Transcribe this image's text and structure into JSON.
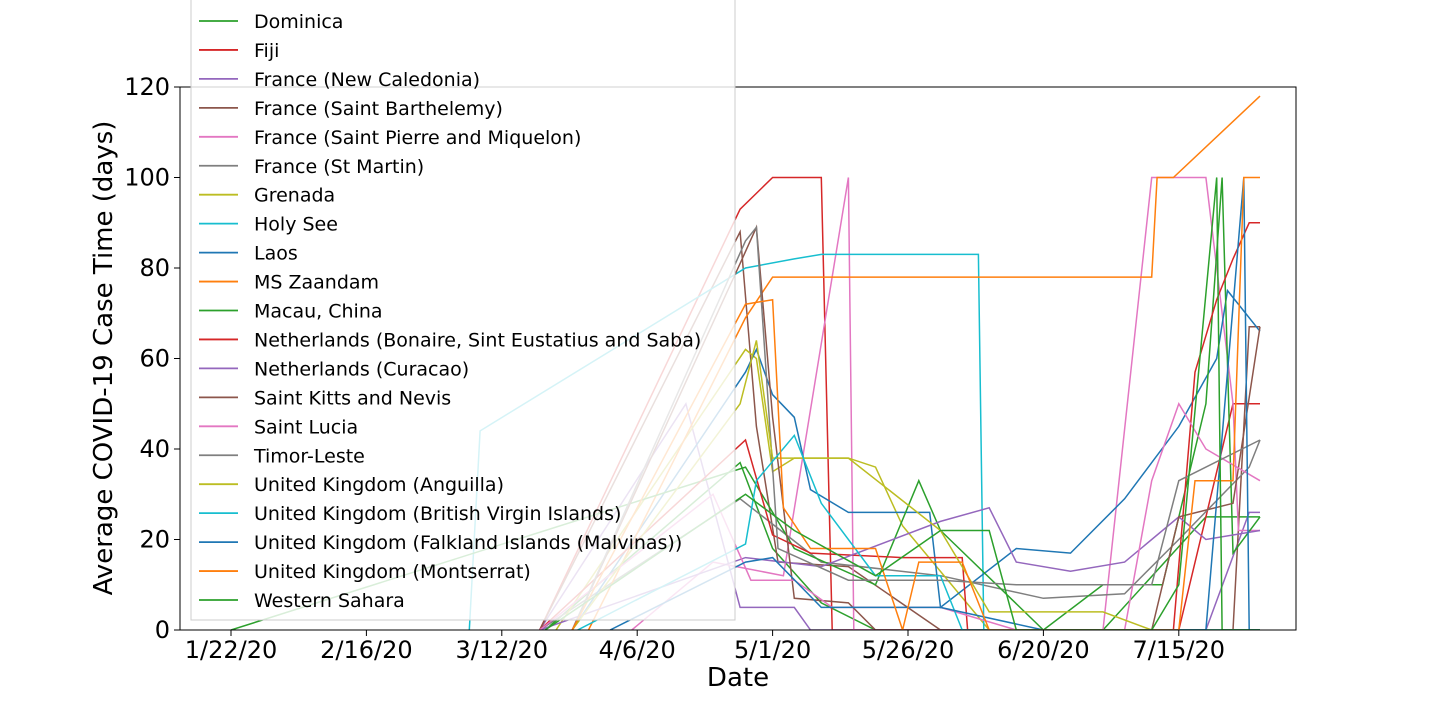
{
  "chart_data": {
    "type": "line",
    "xlabel": "Date",
    "ylabel": "Average COVID-19 Case Time (days)",
    "x_tick_labels": [
      "1/22/20",
      "2/16/20",
      "3/12/20",
      "4/6/20",
      "5/1/20",
      "5/26/20",
      "6/20/20",
      "7/15/20"
    ],
    "x_range": [
      "1/22/20",
      "7/30/20"
    ],
    "ylim": [
      0,
      120
    ],
    "y_ticks": [
      0,
      20,
      40,
      60,
      80,
      100,
      120
    ],
    "grid": false,
    "legend_placement": "upper-left (overlapping plot, partially cut off at top)",
    "series": [
      {
        "name": "Dominica",
        "color": "#2ca02c",
        "points": [
          [
            "3/20/20",
            0
          ],
          [
            "4/25/20",
            37
          ],
          [
            "5/1/20",
            18
          ],
          [
            "5/10/20",
            6
          ],
          [
            "5/20/20",
            0
          ],
          [
            "6/10/20",
            0
          ],
          [
            "7/1/20",
            0
          ],
          [
            "7/20/20",
            25
          ],
          [
            "7/30/20",
            25
          ]
        ]
      },
      {
        "name": "Fiji",
        "color": "#d62728",
        "points": [
          [
            "3/19/20",
            0
          ],
          [
            "4/25/20",
            93
          ],
          [
            "5/1/20",
            100
          ],
          [
            "5/10/20",
            100
          ],
          [
            "5/12/20",
            0
          ],
          [
            "6/1/20",
            0
          ],
          [
            "7/15/20",
            0
          ],
          [
            "7/25/20",
            50
          ],
          [
            "7/30/20",
            50
          ]
        ]
      },
      {
        "name": "France (New Caledonia)",
        "color": "#9467bd",
        "points": [
          [
            "3/19/20",
            0
          ],
          [
            "4/15/20",
            50
          ],
          [
            "4/25/20",
            5
          ],
          [
            "5/5/20",
            5
          ],
          [
            "5/8/20",
            0
          ],
          [
            "7/20/20",
            0
          ],
          [
            "7/28/20",
            26
          ],
          [
            "7/30/20",
            26
          ]
        ]
      },
      {
        "name": "France (Saint Barthelemy)",
        "color": "#8c564b",
        "points": [
          [
            "3/19/20",
            0
          ],
          [
            "4/25/20",
            88
          ],
          [
            "4/28/20",
            45
          ],
          [
            "5/2/20",
            15
          ],
          [
            "5/15/20",
            14
          ],
          [
            "6/1/20",
            0
          ],
          [
            "7/25/20",
            0
          ],
          [
            "7/28/20",
            67
          ],
          [
            "7/30/20",
            67
          ]
        ]
      },
      {
        "name": "France (Saint Pierre and Miquelon)",
        "color": "#e377c2",
        "points": [
          [
            "4/5/20",
            0
          ],
          [
            "4/20/20",
            15
          ],
          [
            "5/3/20",
            12
          ],
          [
            "5/15/20",
            100
          ],
          [
            "5/16/20",
            0
          ],
          [
            "7/1/20",
            0
          ],
          [
            "7/10/20",
            100
          ],
          [
            "7/20/20",
            100
          ],
          [
            "7/25/20",
            50
          ],
          [
            "7/26/20",
            22
          ],
          [
            "7/30/20",
            22
          ]
        ]
      },
      {
        "name": "France (St Martin)",
        "color": "#7f7f7f",
        "points": [
          [
            "3/19/20",
            0
          ],
          [
            "4/25/20",
            29
          ],
          [
            "5/10/20",
            15
          ],
          [
            "6/1/20",
            12
          ],
          [
            "6/20/20",
            7
          ],
          [
            "7/5/20",
            8
          ],
          [
            "7/15/20",
            20
          ],
          [
            "7/28/20",
            36
          ],
          [
            "7/30/20",
            42
          ]
        ]
      },
      {
        "name": "Grenada",
        "color": "#bcbd22",
        "points": [
          [
            "3/22/20",
            0
          ],
          [
            "4/26/20",
            62
          ],
          [
            "4/28/20",
            60
          ],
          [
            "5/1/20",
            35
          ],
          [
            "5/5/20",
            38
          ],
          [
            "5/15/20",
            38
          ],
          [
            "5/20/20",
            36
          ],
          [
            "5/25/20",
            23
          ],
          [
            "6/10/20",
            0
          ],
          [
            "7/30/20",
            0
          ]
        ]
      },
      {
        "name": "Holy See",
        "color": "#17becf",
        "points": [
          [
            "3/6/20",
            0
          ],
          [
            "3/8/20",
            44
          ],
          [
            "4/26/20",
            80
          ],
          [
            "5/5/20",
            82
          ],
          [
            "5/10/20",
            83
          ],
          [
            "6/8/20",
            83
          ],
          [
            "6/9/20",
            0
          ],
          [
            "7/30/20",
            0
          ]
        ]
      },
      {
        "name": "Laos",
        "color": "#1f77b4",
        "points": [
          [
            "3/25/20",
            0
          ],
          [
            "4/26/20",
            57
          ],
          [
            "4/28/20",
            62
          ],
          [
            "5/1/20",
            52
          ],
          [
            "5/5/20",
            47
          ],
          [
            "5/8/20",
            31
          ],
          [
            "5/15/20",
            26
          ],
          [
            "5/30/20",
            26
          ],
          [
            "6/1/20",
            5
          ],
          [
            "6/15/20",
            18
          ],
          [
            "6/25/20",
            17
          ],
          [
            "7/5/20",
            29
          ],
          [
            "7/15/20",
            45
          ],
          [
            "7/22/20",
            60
          ],
          [
            "7/24/20",
            75
          ],
          [
            "7/30/20",
            66
          ]
        ]
      },
      {
        "name": "MS Zaandam",
        "color": "#ff7f0e",
        "points": [
          [
            "3/28/20",
            0
          ],
          [
            "4/26/20",
            69
          ],
          [
            "5/1/20",
            78
          ],
          [
            "6/15/20",
            78
          ],
          [
            "7/10/20",
            78
          ],
          [
            "7/11/20",
            100
          ],
          [
            "7/14/20",
            100
          ],
          [
            "7/30/20",
            118
          ]
        ]
      },
      {
        "name": "Macau, China",
        "color": "#2ca02c",
        "points": [
          [
            "1/22/20",
            0
          ],
          [
            "4/26/20",
            36
          ],
          [
            "5/5/20",
            18
          ],
          [
            "5/20/20",
            10
          ],
          [
            "5/28/20",
            33
          ],
          [
            "6/1/20",
            22
          ],
          [
            "6/20/20",
            0
          ],
          [
            "7/1/20",
            10
          ],
          [
            "7/12/20",
            10
          ],
          [
            "7/20/20",
            50
          ],
          [
            "7/23/20",
            100
          ],
          [
            "7/25/20",
            17
          ],
          [
            "7/30/20",
            25
          ]
        ]
      },
      {
        "name": "Netherlands (Bonaire, Sint Eustatius and Saba)",
        "color": "#d62728",
        "points": [
          [
            "3/19/20",
            0
          ],
          [
            "4/26/20",
            42
          ],
          [
            "5/1/20",
            21
          ],
          [
            "5/8/20",
            17
          ],
          [
            "5/25/20",
            16
          ],
          [
            "6/5/20",
            16
          ],
          [
            "6/6/20",
            0
          ],
          [
            "7/14/20",
            0
          ],
          [
            "7/18/20",
            57
          ],
          [
            "7/22/20",
            73
          ],
          [
            "7/25/20",
            82
          ],
          [
            "7/28/20",
            90
          ],
          [
            "7/30/20",
            90
          ]
        ]
      },
      {
        "name": "Netherlands (Curacao)",
        "color": "#9467bd",
        "points": [
          [
            "3/19/20",
            0
          ],
          [
            "4/26/20",
            16
          ],
          [
            "5/10/20",
            14
          ],
          [
            "6/1/20",
            24
          ],
          [
            "6/10/20",
            27
          ],
          [
            "6/15/20",
            15
          ],
          [
            "6/25/20",
            13
          ],
          [
            "7/5/20",
            15
          ],
          [
            "7/15/20",
            25
          ],
          [
            "7/20/20",
            20
          ],
          [
            "7/30/20",
            22
          ]
        ]
      },
      {
        "name": "Saint Kitts and Nevis",
        "color": "#8c564b",
        "points": [
          [
            "3/25/20",
            0
          ],
          [
            "4/25/20",
            81
          ],
          [
            "4/28/20",
            89
          ],
          [
            "5/1/20",
            47
          ],
          [
            "5/5/20",
            7
          ],
          [
            "5/15/20",
            6
          ],
          [
            "5/20/20",
            0
          ],
          [
            "7/10/20",
            0
          ],
          [
            "7/15/20",
            25
          ],
          [
            "7/25/20",
            28
          ],
          [
            "7/30/20",
            67
          ]
        ]
      },
      {
        "name": "Saint Lucia",
        "color": "#e377c2",
        "points": [
          [
            "3/19/20",
            0
          ],
          [
            "4/20/20",
            30
          ],
          [
            "4/27/20",
            11
          ],
          [
            "5/5/20",
            11
          ],
          [
            "5/12/20",
            5
          ],
          [
            "6/1/20",
            5
          ],
          [
            "6/15/20",
            0
          ],
          [
            "7/5/20",
            0
          ],
          [
            "7/10/20",
            33
          ],
          [
            "7/15/20",
            50
          ],
          [
            "7/20/20",
            40
          ],
          [
            "7/30/20",
            33
          ]
        ]
      },
      {
        "name": "Timor-Leste",
        "color": "#7f7f7f",
        "points": [
          [
            "3/25/20",
            0
          ],
          [
            "4/26/20",
            86
          ],
          [
            "4/28/20",
            89
          ],
          [
            "5/2/20",
            18
          ],
          [
            "5/15/20",
            11
          ],
          [
            "6/1/20",
            11
          ],
          [
            "6/15/20",
            10
          ],
          [
            "7/10/20",
            10
          ],
          [
            "7/15/20",
            33
          ],
          [
            "7/30/20",
            42
          ]
        ]
      },
      {
        "name": "United Kingdom (Anguilla)",
        "color": "#bcbd22",
        "points": [
          [
            "3/25/20",
            0
          ],
          [
            "4/25/20",
            50
          ],
          [
            "4/28/20",
            64
          ],
          [
            "5/1/20",
            38
          ],
          [
            "5/15/20",
            38
          ],
          [
            "6/1/20",
            22
          ],
          [
            "6/10/20",
            4
          ],
          [
            "7/1/20",
            4
          ],
          [
            "7/10/20",
            0
          ],
          [
            "7/30/20",
            0
          ]
        ]
      },
      {
        "name": "United Kingdom (British Virgin Islands)",
        "color": "#17becf",
        "points": [
          [
            "3/26/20",
            0
          ],
          [
            "4/26/20",
            19
          ],
          [
            "4/28/20",
            33
          ],
          [
            "5/5/20",
            43
          ],
          [
            "5/10/20",
            28
          ],
          [
            "5/20/20",
            12
          ],
          [
            "6/1/20",
            12
          ],
          [
            "6/5/20",
            0
          ],
          [
            "7/30/20",
            0
          ]
        ]
      },
      {
        "name": "United Kingdom (Falkland Islands (Malvinas))",
        "color": "#1f77b4",
        "points": [
          [
            "4/1/20",
            0
          ],
          [
            "4/26/20",
            15
          ],
          [
            "5/1/20",
            16
          ],
          [
            "5/10/20",
            5
          ],
          [
            "6/1/20",
            5
          ],
          [
            "6/20/20",
            0
          ],
          [
            "7/20/20",
            0
          ],
          [
            "7/27/20",
            100
          ],
          [
            "7/28/20",
            0
          ],
          [
            "7/30/20",
            0
          ]
        ]
      },
      {
        "name": "United Kingdom (Montserrat)",
        "color": "#ff7f0e",
        "points": [
          [
            "3/25/20",
            0
          ],
          [
            "4/26/20",
            72
          ],
          [
            "5/1/20",
            73
          ],
          [
            "5/3/20",
            27
          ],
          [
            "5/8/20",
            18
          ],
          [
            "5/20/20",
            18
          ],
          [
            "5/25/20",
            0
          ],
          [
            "5/28/20",
            15
          ],
          [
            "6/5/20",
            15
          ],
          [
            "6/10/20",
            0
          ],
          [
            "7/15/20",
            0
          ],
          [
            "7/18/20",
            33
          ],
          [
            "7/25/20",
            33
          ],
          [
            "7/27/20",
            100
          ],
          [
            "7/30/20",
            100
          ]
        ]
      },
      {
        "name": "Western Sahara",
        "color": "#2ca02c",
        "points": [
          [
            "3/20/20",
            0
          ],
          [
            "4/26/20",
            30
          ],
          [
            "5/5/20",
            22
          ],
          [
            "5/20/20",
            12
          ],
          [
            "6/1/20",
            22
          ],
          [
            "6/10/20",
            22
          ],
          [
            "6/15/20",
            0
          ],
          [
            "7/10/20",
            0
          ],
          [
            "7/15/20",
            10
          ],
          [
            "7/22/20",
            100
          ],
          [
            "7/23/20",
            0
          ],
          [
            "7/30/20",
            0
          ]
        ]
      }
    ]
  }
}
